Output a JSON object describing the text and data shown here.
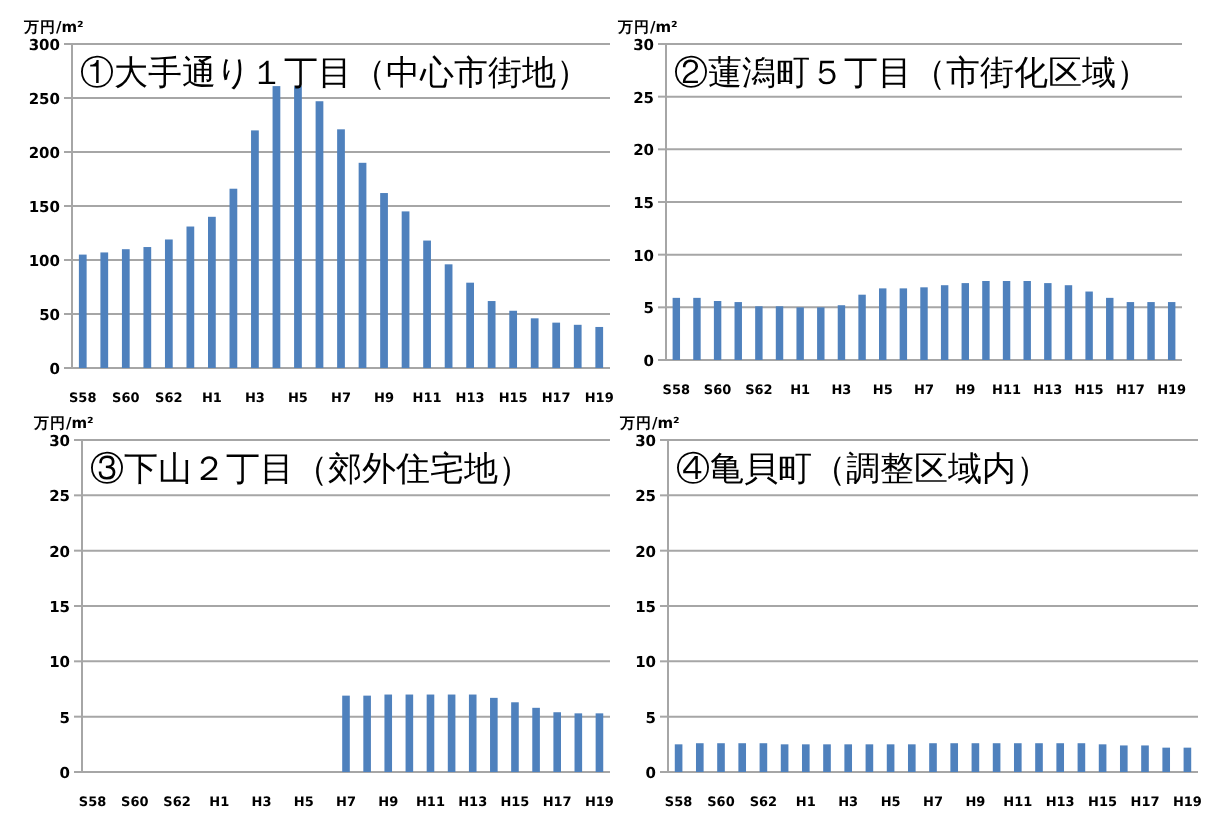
{
  "chart_data": [
    {
      "type": "bar",
      "title": "①大手通り１丁目（中心市街地）",
      "ylabel": "万円/m²",
      "categories": [
        "S58",
        null,
        "S60",
        null,
        "S62",
        null,
        "H1",
        null,
        "H3",
        null,
        "H5",
        null,
        "H7",
        null,
        "H9",
        null,
        "H11",
        null,
        "H13",
        null,
        "H15",
        null,
        "H17",
        null,
        "H19"
      ],
      "values": [
        105,
        107,
        110,
        112,
        119,
        131,
        140,
        166,
        220,
        261,
        261,
        247,
        221,
        190,
        162,
        145,
        118,
        96,
        79,
        62,
        53,
        46,
        42,
        40,
        38
      ],
      "color": "#4f81bd",
      "ylim": [
        0,
        300
      ],
      "yticks": [
        0,
        50,
        100,
        150,
        200,
        250,
        300
      ],
      "grid": "y"
    },
    {
      "type": "bar",
      "title": "②蓮潟町５丁目（市街化区域）",
      "ylabel": "万円/m²",
      "categories": [
        "S58",
        null,
        "S60",
        null,
        "S62",
        null,
        "H1",
        null,
        "H3",
        null,
        "H5",
        null,
        "H7",
        null,
        "H9",
        null,
        "H11",
        null,
        "H13",
        null,
        "H15",
        null,
        "H17",
        null,
        "H19"
      ],
      "values": [
        5.9,
        5.9,
        5.6,
        5.5,
        5.1,
        5.1,
        5.0,
        5.0,
        5.2,
        6.2,
        6.8,
        6.8,
        6.9,
        7.1,
        7.3,
        7.5,
        7.5,
        7.5,
        7.3,
        7.1,
        6.5,
        5.9,
        5.5,
        5.5,
        5.5
      ],
      "color": "#4f81bd",
      "ylim": [
        0,
        30
      ],
      "yticks": [
        0,
        5,
        10,
        15,
        20,
        25,
        30
      ],
      "grid": "y"
    },
    {
      "type": "bar",
      "title": "③下山２丁目（郊外住宅地）",
      "ylabel": "万円/m²",
      "categories": [
        "S58",
        null,
        "S60",
        null,
        "S62",
        null,
        "H1",
        null,
        "H3",
        null,
        "H5",
        null,
        "H7",
        null,
        "H9",
        null,
        "H11",
        null,
        "H13",
        null,
        "H15",
        null,
        "H17",
        null,
        "H19"
      ],
      "values": [
        null,
        null,
        null,
        null,
        null,
        null,
        null,
        null,
        null,
        null,
        null,
        null,
        6.9,
        6.9,
        7.0,
        7.0,
        7.0,
        7.0,
        7.0,
        6.7,
        6.3,
        5.8,
        5.4,
        5.3,
        5.3
      ],
      "color": "#4f81bd",
      "ylim": [
        0,
        30
      ],
      "yticks": [
        0,
        5,
        10,
        15,
        20,
        25,
        30
      ],
      "grid": "y"
    },
    {
      "type": "bar",
      "title": "④亀貝町（調整区域内）",
      "ylabel": "万円/m²",
      "categories": [
        "S58",
        null,
        "S60",
        null,
        "S62",
        null,
        "H1",
        null,
        "H3",
        null,
        "H5",
        null,
        "H7",
        null,
        "H9",
        null,
        "H11",
        null,
        "H13",
        null,
        "H15",
        null,
        "H17",
        null,
        "H19"
      ],
      "values": [
        2.5,
        2.6,
        2.6,
        2.6,
        2.6,
        2.5,
        2.5,
        2.5,
        2.5,
        2.5,
        2.5,
        2.5,
        2.6,
        2.6,
        2.6,
        2.6,
        2.6,
        2.6,
        2.6,
        2.6,
        2.5,
        2.4,
        2.4,
        2.2,
        2.2
      ],
      "color": "#4f81bd",
      "ylim": [
        0,
        30
      ],
      "yticks": [
        0,
        5,
        10,
        15,
        20,
        25,
        30
      ],
      "grid": "y"
    }
  ]
}
